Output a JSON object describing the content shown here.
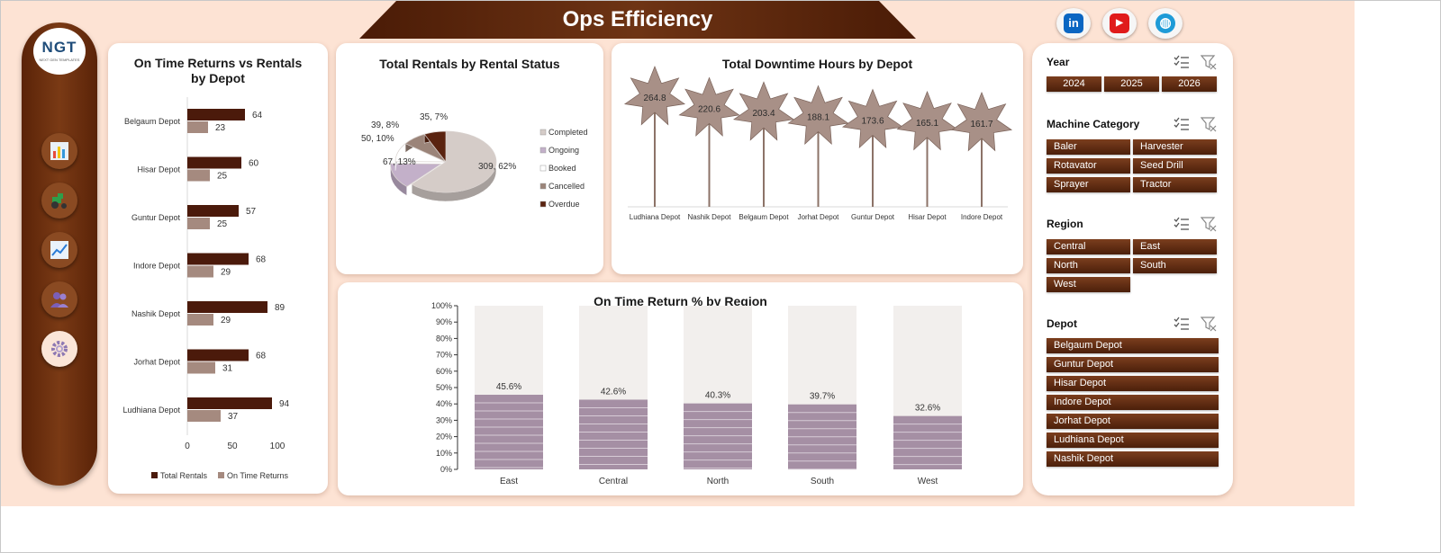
{
  "header": {
    "title": "Ops Efficiency",
    "social": [
      {
        "name": "linkedin",
        "glyph": "in",
        "color": "#0a66c2"
      },
      {
        "name": "youtube",
        "glyph": "▶",
        "color": "#e01b1b"
      },
      {
        "name": "website",
        "glyph": "◍",
        "color": "#1e9bd7"
      }
    ]
  },
  "logo": {
    "text": "NGT",
    "subtext": "NEXT GEN TEMPLATES"
  },
  "nav": [
    {
      "name": "dashboard",
      "icon": "bar-chart-icon"
    },
    {
      "name": "machines",
      "icon": "tractor-icon"
    },
    {
      "name": "trends",
      "icon": "line-chart-icon"
    },
    {
      "name": "customers",
      "icon": "users-icon"
    },
    {
      "name": "settings",
      "icon": "gear-icon",
      "active": true
    }
  ],
  "chart_data": [
    {
      "id": "returns-vs-rentals",
      "type": "bar",
      "title": "On Time Returns vs Rentals by Depot",
      "categories": [
        "Belgaum Depot",
        "Hisar Depot",
        "Guntur Depot",
        "Indore Depot",
        "Nashik Depot",
        "Jorhat Depot",
        "Ludhiana Depot"
      ],
      "series": [
        {
          "name": "Total Rentals",
          "values": [
            64,
            60,
            57,
            68,
            89,
            68,
            94
          ],
          "color": "#4b1a0b"
        },
        {
          "name": "On Time Returns",
          "values": [
            23,
            25,
            25,
            29,
            29,
            31,
            37
          ],
          "color": "#a58a7f"
        }
      ],
      "xticks": [
        "0",
        "50",
        "100"
      ],
      "xlim": [
        0,
        100
      ],
      "legend": "bottom"
    },
    {
      "id": "rentals-by-status",
      "type": "pie",
      "title": "Total Rentals by Rental Status",
      "slices": [
        {
          "name": "Completed",
          "value": 309,
          "label": "309, 62%",
          "color": "#d5ccc8"
        },
        {
          "name": "Ongoing",
          "value": 67,
          "label": "67, 13%",
          "color": "#c3b0c9"
        },
        {
          "name": "Booked",
          "value": 50,
          "label": "50, 10%",
          "color": "#ffffff"
        },
        {
          "name": "Cancelled",
          "value": 39,
          "label": "39, 8%",
          "color": "#9b8479"
        },
        {
          "name": "Overdue",
          "value": 35,
          "label": "35, 7%",
          "color": "#5a2310"
        }
      ],
      "legend": "right"
    },
    {
      "id": "downtime-by-depot",
      "type": "bar",
      "title": "Total Downtime Hours by Depot",
      "categories": [
        "Ludhiana Depot",
        "Nashik Depot",
        "Belgaum Depot",
        "Jorhat Depot",
        "Guntur Depot",
        "Hisar Depot",
        "Indore Depot"
      ],
      "values": [
        264.8,
        220.6,
        203.4,
        188.1,
        173.6,
        165.1,
        161.7
      ],
      "labels": [
        "264.8",
        "220.6",
        "203.4",
        "188.1",
        "173.6",
        "165.1",
        "161.7"
      ],
      "color": "#a89087"
    },
    {
      "id": "ontime-return-by-region",
      "type": "bar",
      "title": "On Time Return % by Region",
      "categories": [
        "East",
        "Central",
        "North",
        "South",
        "West"
      ],
      "values": [
        45.6,
        42.6,
        40.3,
        39.7,
        32.6
      ],
      "labels": [
        "45.6%",
        "42.6%",
        "40.3%",
        "39.7%",
        "32.6%"
      ],
      "yticks": [
        "0%",
        "10%",
        "20%",
        "30%",
        "40%",
        "50%",
        "60%",
        "70%",
        "80%",
        "90%",
        "100%"
      ],
      "ylim": [
        0,
        100
      ],
      "color": "#a58fa4",
      "background_color": "#f2efed"
    }
  ],
  "slicers": {
    "year": {
      "title": "Year",
      "options": [
        "2024",
        "2025",
        "2026"
      ]
    },
    "machine_category": {
      "title": "Machine Category",
      "options": [
        "Baler",
        "Harvester",
        "Rotavator",
        "Seed Drill",
        "Sprayer",
        "Tractor"
      ]
    },
    "region": {
      "title": "Region",
      "options": [
        "Central",
        "East",
        "North",
        "South",
        "West"
      ]
    },
    "depot": {
      "title": "Depot",
      "options": [
        "Belgaum Depot",
        "Guntur Depot",
        "Hisar Depot",
        "Indore Depot",
        "Jorhat Depot",
        "Ludhiana Depot",
        "Nashik Depot"
      ]
    }
  }
}
